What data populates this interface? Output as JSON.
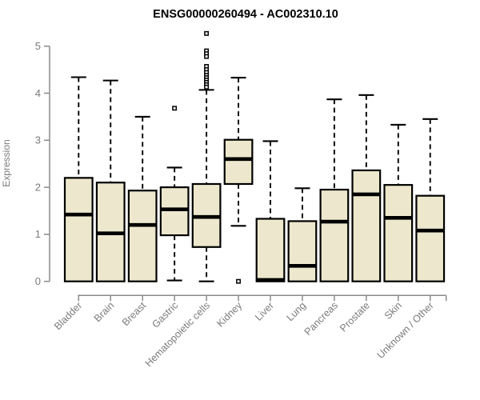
{
  "chart_data": {
    "type": "boxplot",
    "title": "ENSG00000260494 - AC002310.10",
    "xlabel": "",
    "ylabel": "Expression",
    "ylim": [
      0,
      5
    ],
    "yticks": [
      0,
      1,
      2,
      3,
      4,
      5
    ],
    "grid": false,
    "legend": null,
    "categories": [
      "Bladder",
      "Brain",
      "Breast",
      "Gastric",
      "Hematopoietic cells",
      "Kidney",
      "Liver",
      "Lung",
      "Pancreas",
      "Prostate",
      "Skin",
      "Unknown / Other"
    ],
    "boxes": [
      {
        "category": "Bladder",
        "whisker_low": 0,
        "q1": 0,
        "median": 1.42,
        "q3": 2.2,
        "whisker_high": 4.34,
        "outliers": []
      },
      {
        "category": "Brain",
        "whisker_low": 0,
        "q1": 0,
        "median": 1.02,
        "q3": 2.1,
        "whisker_high": 4.27,
        "outliers": []
      },
      {
        "category": "Breast",
        "whisker_low": 0,
        "q1": 0,
        "median": 1.2,
        "q3": 1.93,
        "whisker_high": 3.5,
        "outliers": []
      },
      {
        "category": "Gastric",
        "whisker_low": 0.02,
        "q1": 0.98,
        "median": 1.53,
        "q3": 2.0,
        "whisker_high": 2.42,
        "outliers": [
          3.68
        ]
      },
      {
        "category": "Hematopoietic cells",
        "whisker_low": 0,
        "q1": 0.73,
        "median": 1.37,
        "q3": 2.07,
        "whisker_high": 4.07,
        "outliers": [
          5.27,
          4.9,
          4.84,
          4.78,
          4.57,
          4.5,
          4.44,
          4.38,
          4.33,
          4.28,
          4.23,
          4.18,
          4.13
        ]
      },
      {
        "category": "Kidney",
        "whisker_low": 1.18,
        "q1": 2.07,
        "median": 2.6,
        "q3": 3.01,
        "whisker_high": 4.33,
        "outliers": [
          0.0
        ]
      },
      {
        "category": "Liver",
        "whisker_low": 0,
        "q1": 0,
        "median": 0.03,
        "q3": 1.33,
        "whisker_high": 2.98,
        "outliers": []
      },
      {
        "category": "Lung",
        "whisker_low": 0,
        "q1": 0,
        "median": 0.33,
        "q3": 1.28,
        "whisker_high": 1.98,
        "outliers": []
      },
      {
        "category": "Pancreas",
        "whisker_low": 0,
        "q1": 0,
        "median": 1.27,
        "q3": 1.95,
        "whisker_high": 3.87,
        "outliers": []
      },
      {
        "category": "Prostate",
        "whisker_low": 0,
        "q1": 0,
        "median": 1.85,
        "q3": 2.36,
        "whisker_high": 3.96,
        "outliers": []
      },
      {
        "category": "Skin",
        "whisker_low": 0,
        "q1": 0,
        "median": 1.35,
        "q3": 2.05,
        "whisker_high": 3.33,
        "outliers": []
      },
      {
        "category": "Unknown / Other",
        "whisker_low": 0,
        "q1": 0,
        "median": 1.08,
        "q3": 1.82,
        "whisker_high": 3.45,
        "outliers": []
      }
    ],
    "colors": {
      "box_fill": "#EDE8CD",
      "box_border": "#000000",
      "median": "#000000",
      "whisker": "#000000",
      "outlier_stroke": "#000000",
      "outlier_fill": "#ffffff",
      "axis": "#8a8a8a",
      "tick_text": "#7b7b7b",
      "title": "#000000",
      "background": "#ffffff"
    }
  }
}
